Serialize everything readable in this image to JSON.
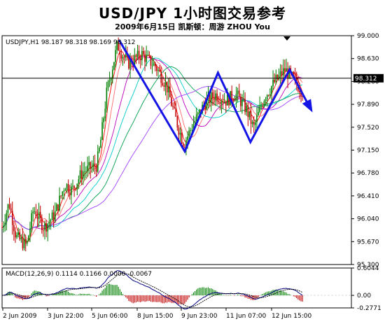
{
  "header": {
    "title": "USD/JPY 1小时图交易参考",
    "subtitle": "2009年6月15日   凯斯顿：周游 ZHOU You"
  },
  "chart_data": [
    {
      "type": "candlestick",
      "label": "USDJPY,H1  98.187 98.318 98.169 98.312",
      "symbol": "USDJPY,H1",
      "ohlc": {
        "open": 98.187,
        "high": 98.318,
        "low": 98.169,
        "close": 98.312
      },
      "current_price_label": "98.312",
      "current_price": 98.312,
      "y_ticks": [
        "99.000",
        "98.630",
        "98.260",
        "97.890",
        "97.520",
        "97.150",
        "96.780",
        "96.410",
        "96.040",
        "95.670",
        "95.300"
      ],
      "ylim": [
        95.3,
        99.0
      ],
      "x_ticks": [
        "2 Jun 2009",
        "3 Jun 22:00",
        "5 Jun 06:00",
        "8 Jun 15:00",
        "9 Jun 23:00",
        "11 Jun 07:00",
        "12 Jun 15:00"
      ],
      "colors": {
        "bull": "#008000",
        "bear": "#c00000",
        "projection": "#1414e6"
      },
      "projection_path": [
        {
          "t": 0.335,
          "price": 98.93
        },
        {
          "t": 0.523,
          "price": 97.13
        },
        {
          "t": 0.618,
          "price": 98.4
        },
        {
          "t": 0.711,
          "price": 97.28
        },
        {
          "t": 0.823,
          "price": 98.45
        },
        {
          "t": 0.885,
          "price": 97.8
        }
      ]
    },
    {
      "type": "line",
      "label": "MACD(12,26,9) 0.1114 0.1166 0.0000 -0.0067",
      "y_ticks": [
        "0.6044",
        "0.00",
        "-0.2771"
      ],
      "ylim": [
        -0.2771,
        0.6044
      ],
      "series": [
        {
          "color": "#000080"
        },
        {
          "color": "#000000"
        }
      ]
    }
  ]
}
